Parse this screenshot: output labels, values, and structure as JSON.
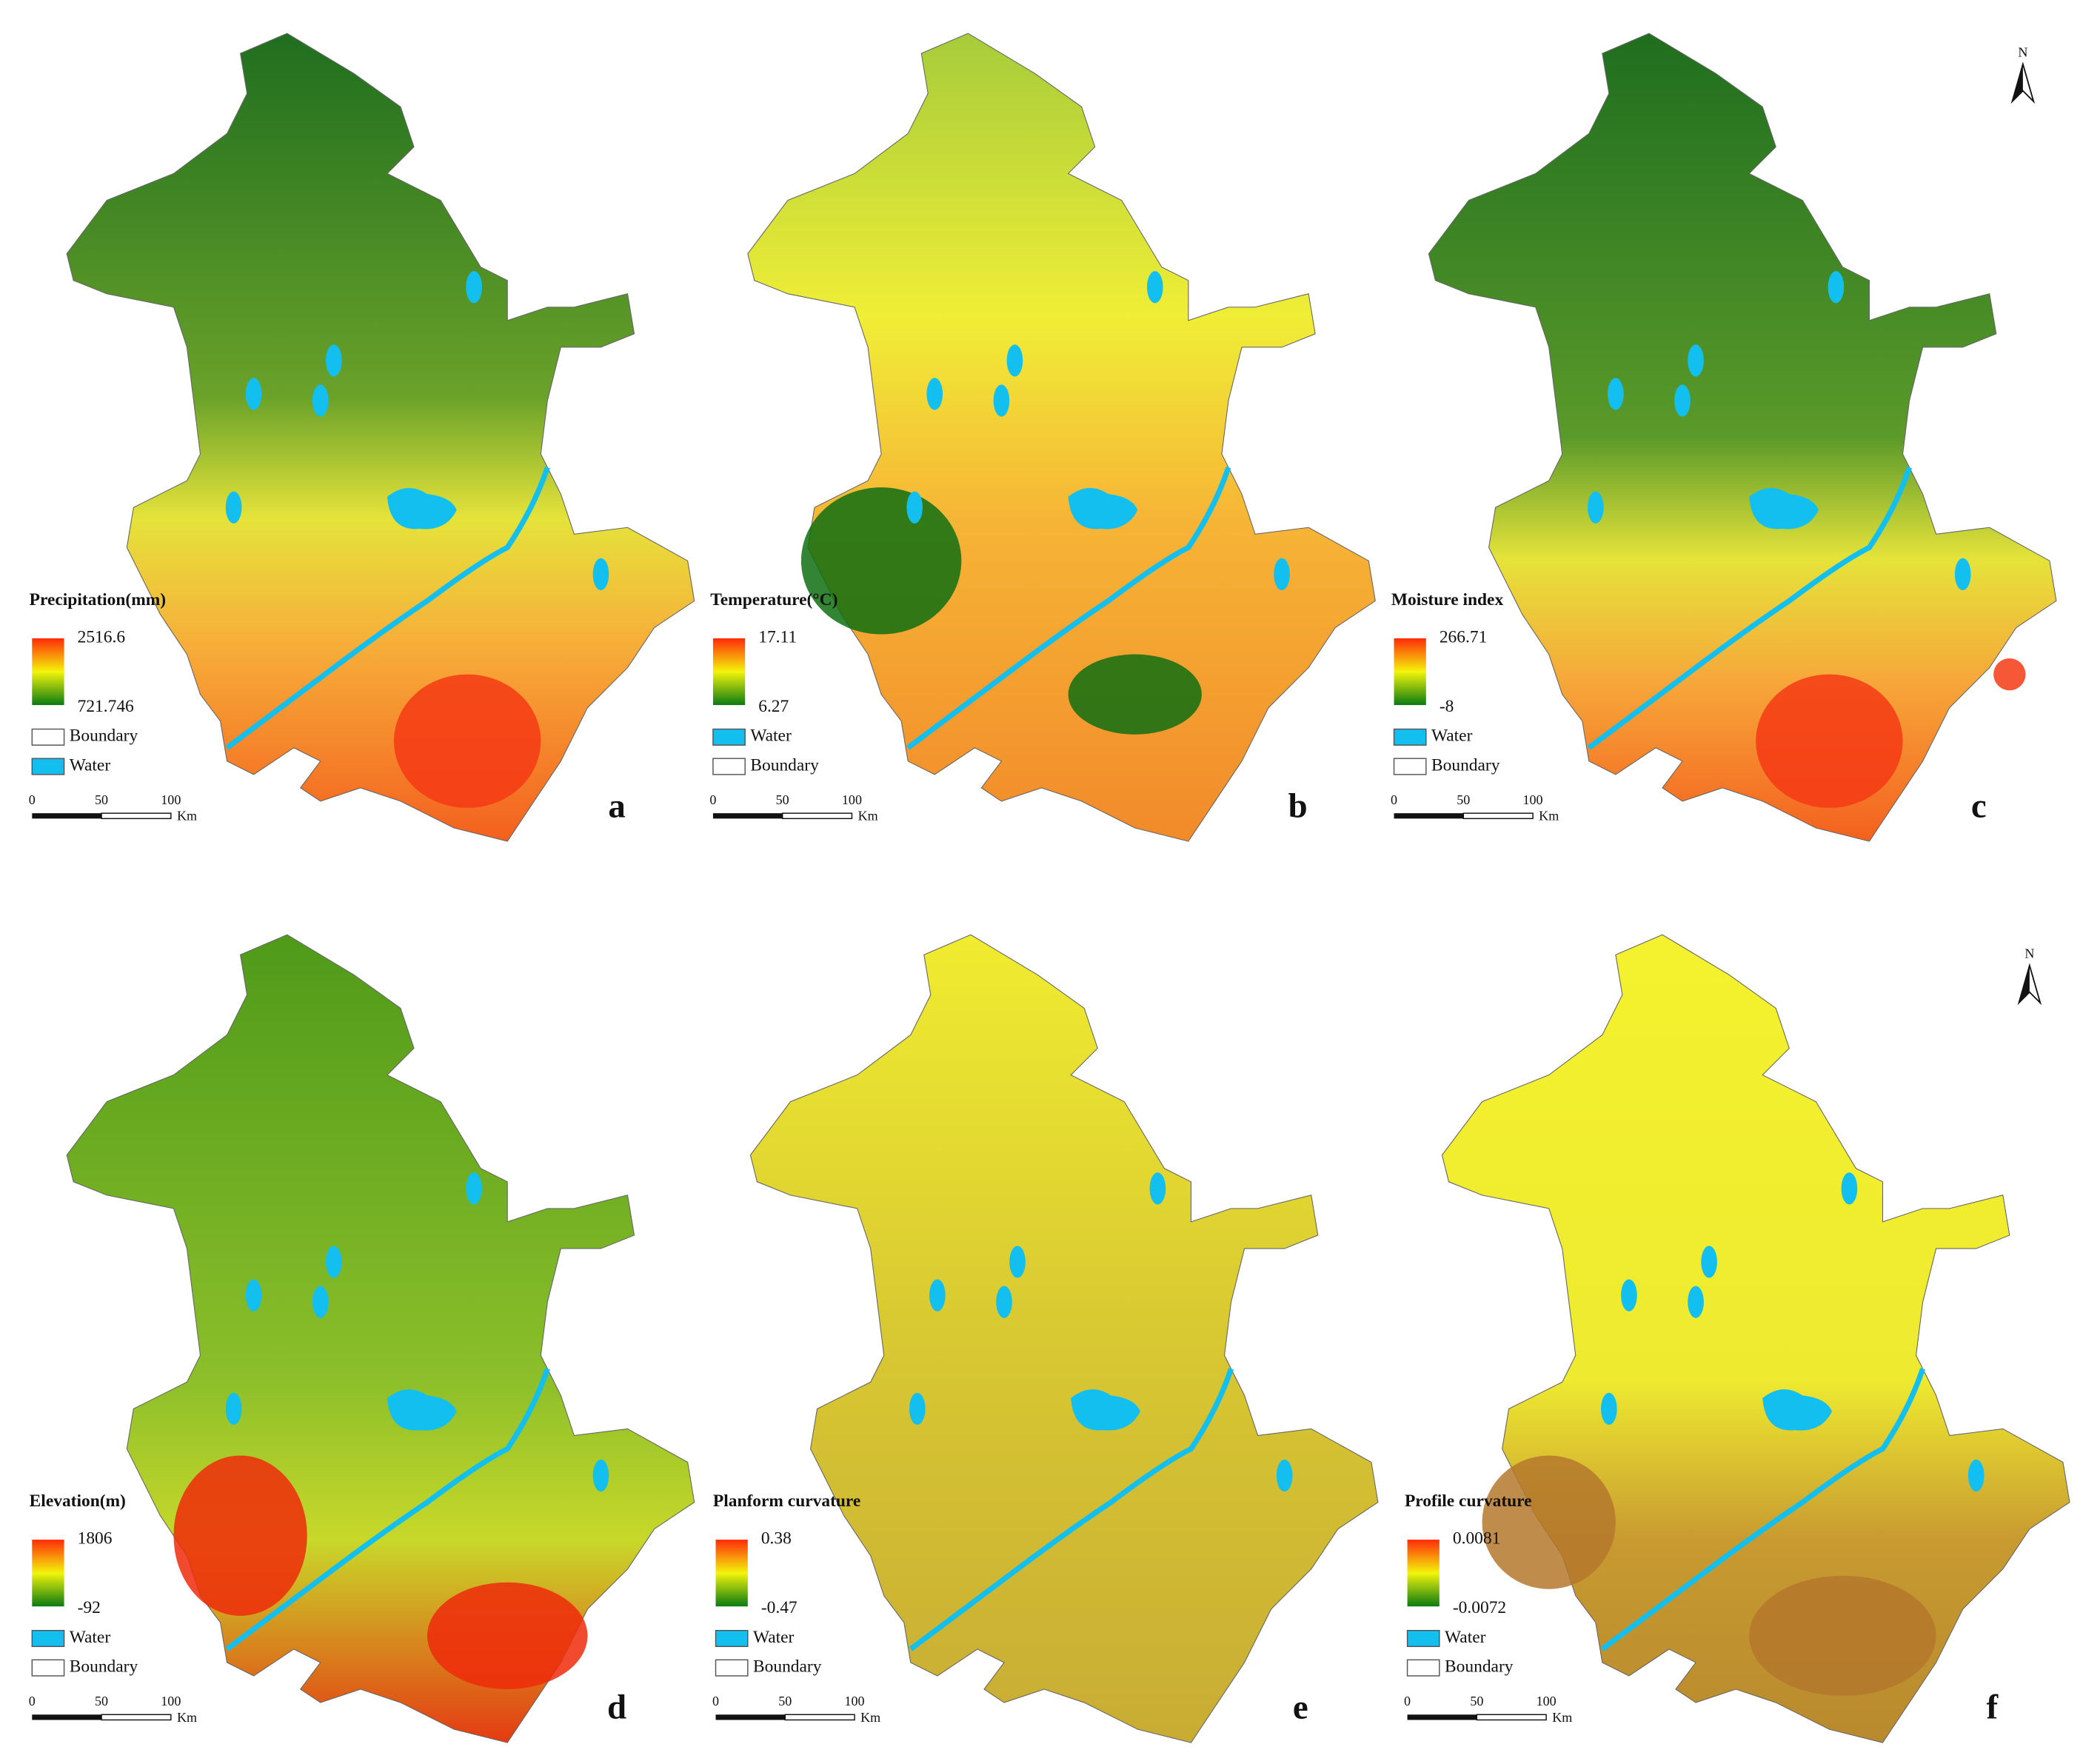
{
  "panels": [
    {
      "title": "Precipitation(mm)",
      "max": "2516.6",
      "min": "721.746",
      "legend": [
        {
          "label": "Boundary",
          "color": "#ffffff"
        },
        {
          "label": "Water",
          "color": "#12bfee"
        }
      ],
      "scale": [
        "0",
        "50",
        "100",
        "Km"
      ],
      "letter": "a"
    },
    {
      "title": "Temperature(°C)",
      "max": "17.11",
      "min": "6.27",
      "legend": [
        {
          "label": "Water",
          "color": "#12bfee"
        },
        {
          "label": "Boundary",
          "color": "#ffffff"
        }
      ],
      "scale": [
        "0",
        "50",
        "100",
        "Km"
      ],
      "letter": "b"
    },
    {
      "title": "Moisture index",
      "max": "266.71",
      "min": "-8",
      "legend": [
        {
          "label": "Water",
          "color": "#12bfee"
        },
        {
          "label": "Boundary",
          "color": "#ffffff"
        }
      ],
      "scale": [
        "0",
        "50",
        "100",
        "Km"
      ],
      "letter": "c"
    },
    {
      "title": "Elevation(m)",
      "max": "1806",
      "min": "-92",
      "legend": [
        {
          "label": "Water",
          "color": "#12bfee"
        },
        {
          "label": "Boundary",
          "color": "#ffffff"
        }
      ],
      "scale": [
        "0",
        "50",
        "100",
        "Km"
      ],
      "letter": "d"
    },
    {
      "title": "Planform curvature",
      "max": "0.38",
      "min": "-0.47",
      "legend": [
        {
          "label": "Water",
          "color": "#12bfee"
        },
        {
          "label": "Boundary",
          "color": "#ffffff"
        }
      ],
      "scale": [
        "0",
        "50",
        "100",
        "Km"
      ],
      "letter": "e"
    },
    {
      "title": "Profile curvature",
      "max": "0.0081",
      "min": "-0.0072",
      "legend": [
        {
          "label": "Water",
          "color": "#12bfee"
        },
        {
          "label": "Boundary",
          "color": "#ffffff"
        }
      ],
      "scale": [
        "0",
        "50",
        "100",
        "Km"
      ],
      "letter": "f"
    }
  ],
  "north_arrows": [
    "N",
    "N"
  ]
}
